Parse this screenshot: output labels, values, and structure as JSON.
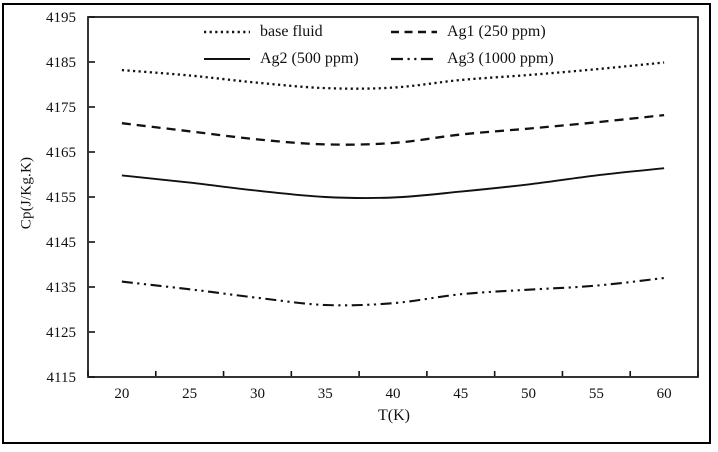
{
  "figure": {
    "xlabel": "T(K)",
    "ylabel": "Cp(J/Kg.K)"
  },
  "chart_data": {
    "type": "line",
    "title": "",
    "xlabel": "T(K)",
    "ylabel": "Cp(J/Kg.K)",
    "x": [
      20,
      25,
      30,
      35,
      40,
      45,
      50,
      55,
      60
    ],
    "x_tick_labels": [
      "20",
      "25",
      "30",
      "35",
      "40",
      "45",
      "50",
      "55",
      "60"
    ],
    "y_ticks": [
      4115,
      4125,
      4135,
      4145,
      4155,
      4165,
      4175,
      4185,
      4195
    ],
    "ylim": [
      4115,
      4195
    ],
    "xlim_categories": true,
    "grid": false,
    "legend_position": "top-center-inside",
    "line_color": "#111111",
    "series": [
      {
        "name": "base fluid",
        "style": "dotted",
        "values": [
          4183.2,
          4182.0,
          4180.4,
          4179.2,
          4179.3,
          4181.0,
          4182.1,
          4183.4,
          4184.9
        ]
      },
      {
        "name": "Ag1 (250 ppm)",
        "style": "dashed",
        "values": [
          4171.4,
          4169.6,
          4167.8,
          4166.7,
          4167.0,
          4168.9,
          4170.2,
          4171.6,
          4173.2
        ]
      },
      {
        "name": "Ag2 (500 ppm)",
        "style": "solid",
        "values": [
          4159.8,
          4158.2,
          4156.4,
          4155.0,
          4154.9,
          4156.2,
          4157.8,
          4159.8,
          4161.4
        ]
      },
      {
        "name": "Ag3 (1000 ppm)",
        "style": "dash-dot-dot",
        "values": [
          4136.2,
          4134.5,
          4132.6,
          4131.0,
          4131.4,
          4133.4,
          4134.4,
          4135.3,
          4137.0
        ]
      }
    ]
  }
}
